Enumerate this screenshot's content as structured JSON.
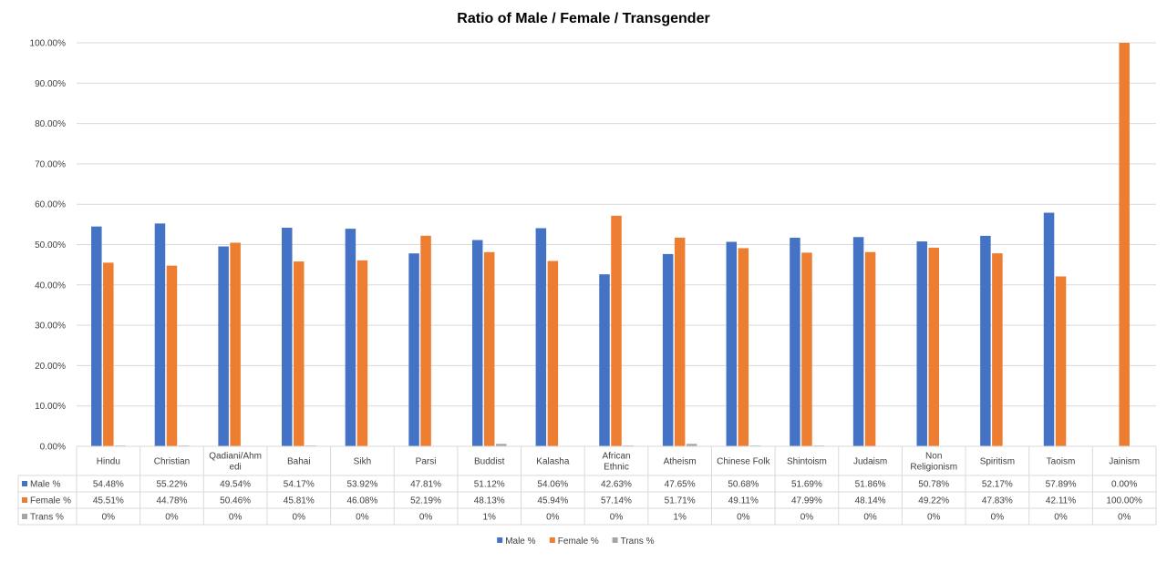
{
  "chart_data": {
    "type": "bar",
    "title": "Ratio of Male / Female / Transgender",
    "categories": [
      [
        "Hindu"
      ],
      [
        "Christian"
      ],
      [
        "Qadiani/Ahm",
        "edi"
      ],
      [
        "Bahai"
      ],
      [
        "Sikh"
      ],
      [
        "Parsi"
      ],
      [
        "Buddist"
      ],
      [
        "Kalasha"
      ],
      [
        "African",
        "Ethnic"
      ],
      [
        "Atheism"
      ],
      [
        "Chinese Folk"
      ],
      [
        "Shintoism"
      ],
      [
        "Judaism"
      ],
      [
        "Non",
        "Religionism"
      ],
      [
        "Spiritism"
      ],
      [
        "Taoism"
      ],
      [
        "Jainism"
      ]
    ],
    "ylim": [
      0,
      100
    ],
    "yticks": [
      "0.00%",
      "10.00%",
      "20.00%",
      "30.00%",
      "40.00%",
      "50.00%",
      "60.00%",
      "70.00%",
      "80.00%",
      "90.00%",
      "100.00%"
    ],
    "grid": true,
    "legend_position": "bottom",
    "series": [
      {
        "name": "Male %",
        "color": "#4472C4",
        "values": [
          54.48,
          55.22,
          49.54,
          54.17,
          53.92,
          47.81,
          51.12,
          54.06,
          42.63,
          47.65,
          50.68,
          51.69,
          51.86,
          50.78,
          52.17,
          57.89,
          0.0
        ],
        "labels": [
          "54.48%",
          "55.22%",
          "49.54%",
          "54.17%",
          "53.92%",
          "47.81%",
          "51.12%",
          "54.06%",
          "42.63%",
          "47.65%",
          "50.68%",
          "51.69%",
          "51.86%",
          "50.78%",
          "52.17%",
          "57.89%",
          "0.00%"
        ]
      },
      {
        "name": "Female %",
        "color": "#ED7D31",
        "values": [
          45.51,
          44.78,
          50.46,
          45.81,
          46.08,
          52.19,
          48.13,
          45.94,
          57.14,
          51.71,
          49.11,
          47.99,
          48.14,
          49.22,
          47.83,
          42.11,
          100.0
        ],
        "labels": [
          "45.51%",
          "44.78%",
          "50.46%",
          "45.81%",
          "46.08%",
          "52.19%",
          "48.13%",
          "45.94%",
          "57.14%",
          "51.71%",
          "49.11%",
          "47.99%",
          "48.14%",
          "49.22%",
          "47.83%",
          "42.11%",
          "100.00%"
        ]
      },
      {
        "name": "Trans %",
        "color": "#A5A5A5",
        "values": [
          0.2,
          0.2,
          0,
          0.2,
          0,
          0,
          0.6,
          0,
          0.2,
          0.6,
          0.2,
          0.2,
          0,
          0,
          0,
          0,
          0
        ],
        "labels": [
          "0%",
          "0%",
          "0%",
          "0%",
          "0%",
          "0%",
          "1%",
          "0%",
          "0%",
          "1%",
          "0%",
          "0%",
          "0%",
          "0%",
          "0%",
          "0%",
          "0%"
        ]
      }
    ]
  }
}
